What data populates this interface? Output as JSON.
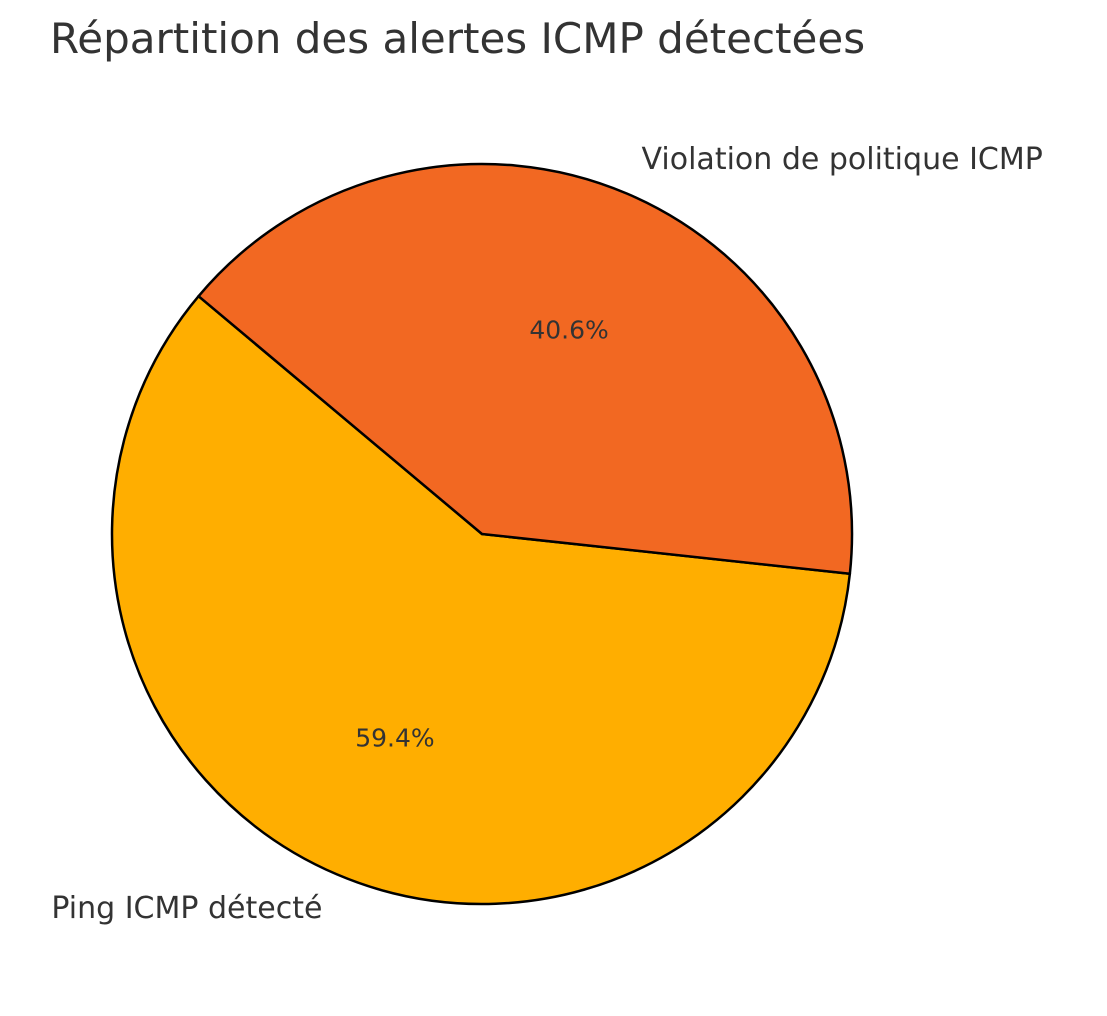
{
  "chart_data": {
    "type": "pie",
    "title": "Répartition des alertes ICMP détectées",
    "slices": [
      {
        "label": "Ping ICMP détecté",
        "value": 59.4,
        "pct_label": "59.4%",
        "color": "#FFAE00"
      },
      {
        "label": "Violation de politique ICMP",
        "value": 40.6,
        "pct_label": "40.6%",
        "color": "#F26822"
      }
    ],
    "edge_color": "#000000",
    "start_angle_deg": 140,
    "direction": "counterclockwise"
  }
}
